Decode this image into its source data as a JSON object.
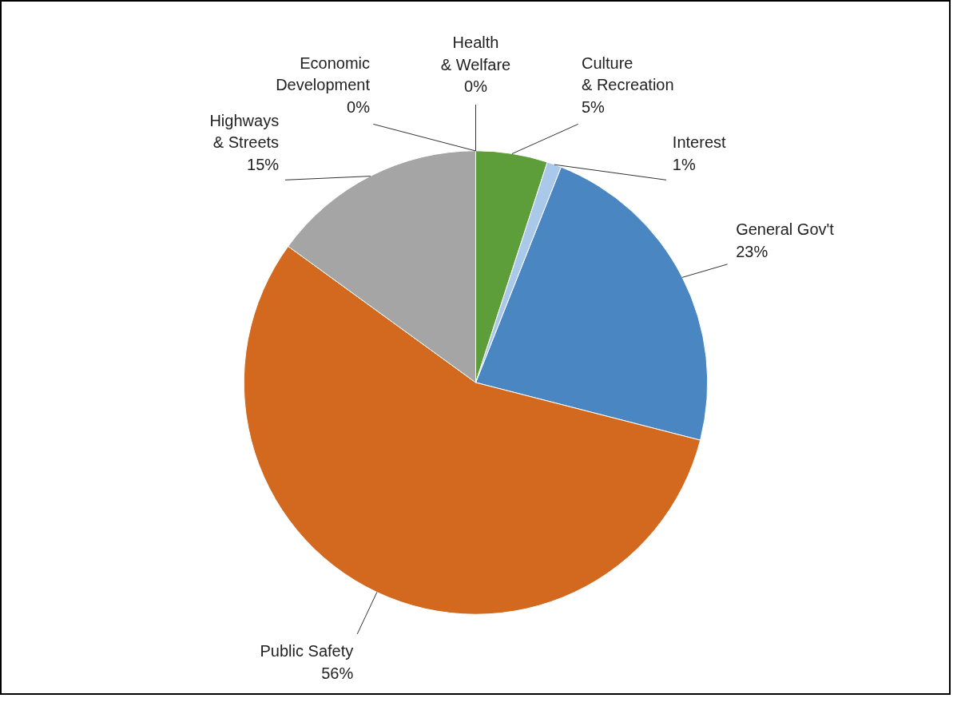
{
  "chart_data": {
    "type": "pie",
    "categories": [
      "General Gov't",
      "Public Safety",
      "Highways & Streets",
      "Economic Development",
      "Health & Welfare",
      "Culture & Recreation",
      "Interest"
    ],
    "values": [
      23,
      56,
      15,
      0,
      0,
      5,
      1
    ],
    "value_labels": [
      "23%",
      "56%",
      "15%",
      "0%",
      "0%",
      "5%",
      "1%"
    ],
    "colors": [
      "#4a86c2",
      "#d2691e",
      "#a5a5a5",
      "#ffc000",
      "#4472c4",
      "#5e9e3a",
      "#a9c8ea"
    ],
    "legend": false
  }
}
